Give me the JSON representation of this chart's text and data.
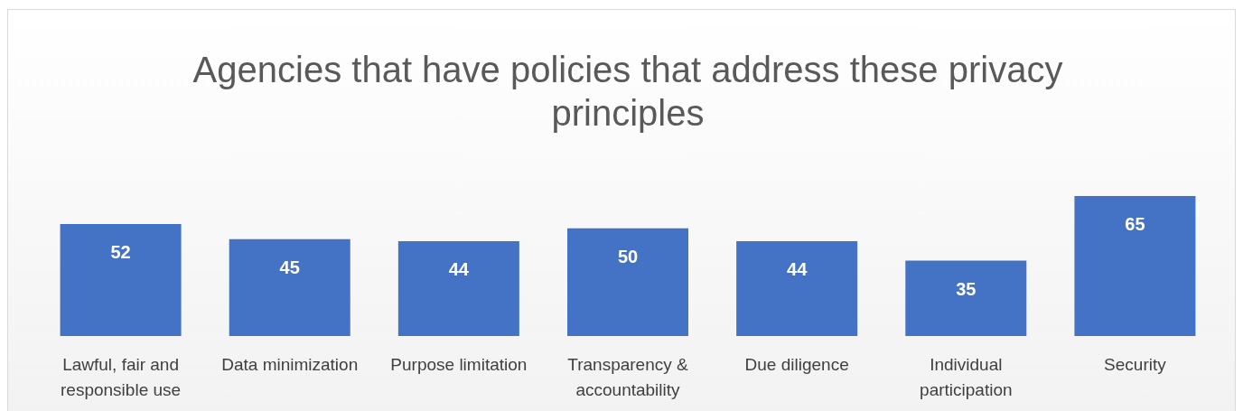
{
  "chart_data": {
    "type": "bar",
    "title": "Agencies that have policies that address these privacy principles",
    "categories": [
      "Lawful, fair and responsible use",
      "Data minimization",
      "Purpose limitation",
      "Transparency & accountability",
      "Due diligence",
      "Individual participation",
      "Security"
    ],
    "values": [
      52,
      45,
      44,
      50,
      44,
      35,
      65
    ],
    "color": "#4472c4",
    "data_labels": true
  }
}
